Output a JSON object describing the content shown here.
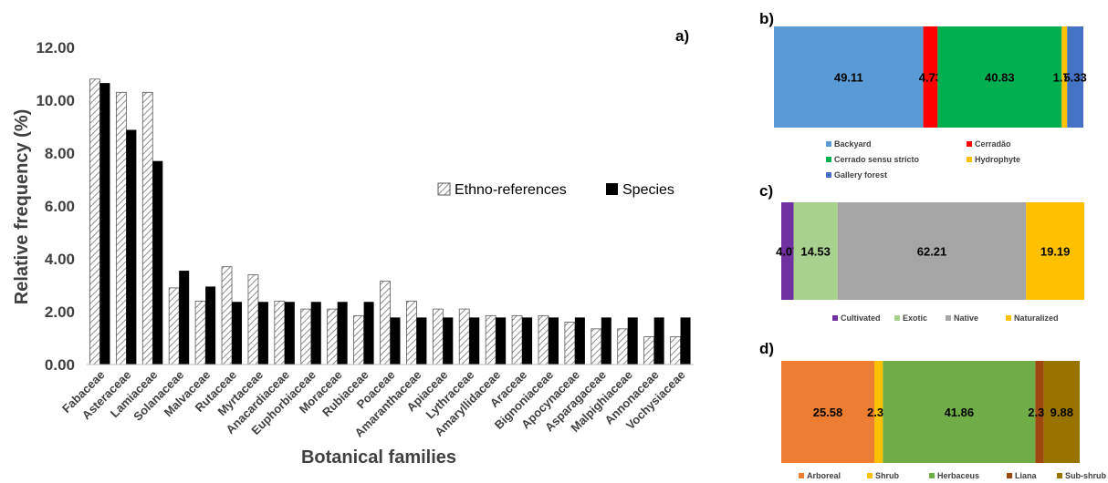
{
  "chart_data": [
    {
      "panel": "a)",
      "type": "bar",
      "ylabel": "Relative frequency (%)",
      "xlabel": "Botanical families",
      "ylim": [
        0,
        12
      ],
      "yticks": [
        "0.00",
        "2.00",
        "4.00",
        "6.00",
        "8.00",
        "10.00",
        "12.00"
      ],
      "grid": false,
      "legend_position": "right",
      "categories": [
        "Fabaceae",
        "Asteraceae",
        "Lamiaceae",
        "Solanaceae",
        "Malvaceae",
        "Rutaceae",
        "Myrtaceae",
        "Anacardiaceae",
        "Euphorbiaceae",
        "Moraceae",
        "Rubiaceae",
        "Poaceae",
        "Amaranthaceae",
        "Apiaceae",
        "Lythraceae",
        "Amaryllidaceae",
        "Araceae",
        "Bignoniaceae",
        "Apocynaceae",
        "Asparagaceae",
        "Malpighiaceae",
        "Annonaceae",
        "Vochysiaceae"
      ],
      "series": [
        {
          "name": "Ethno-references",
          "pattern": "hatched",
          "values": [
            10.8,
            10.3,
            10.3,
            2.9,
            2.4,
            3.7,
            3.4,
            2.4,
            2.1,
            2.1,
            1.85,
            3.15,
            2.4,
            2.1,
            2.1,
            1.85,
            1.85,
            1.85,
            1.6,
            1.35,
            1.35,
            1.05,
            1.05
          ]
        },
        {
          "name": "Species",
          "color": "#000000",
          "values": [
            10.65,
            8.88,
            7.7,
            3.55,
            2.95,
            2.37,
            2.37,
            2.37,
            2.37,
            2.37,
            2.37,
            1.78,
            1.78,
            1.78,
            1.78,
            1.78,
            1.78,
            1.78,
            1.78,
            1.78,
            1.78,
            1.78,
            1.78
          ]
        }
      ]
    },
    {
      "panel": "b)",
      "type": "bar",
      "orientation": "horizontal",
      "stacked": true,
      "legend_position": "bottom",
      "series": [
        {
          "name": "Backyard",
          "value": 49.11,
          "label": "49.11",
          "color": "#5b9bd5"
        },
        {
          "name": "Cerradão",
          "value": 4.73,
          "label": "4.73",
          "color": "#ff0000"
        },
        {
          "name": "Cerrado sensu stricto",
          "value": 40.83,
          "label": "40.83",
          "color": "#00b050"
        },
        {
          "name": "Hydrophyte",
          "value": 1.78,
          "label": "1.78",
          "color": "#ffc000"
        },
        {
          "name": "Gallery forest",
          "value": 5.33,
          "label": "5.33",
          "color": "#4472c4"
        }
      ]
    },
    {
      "panel": "c)",
      "type": "bar",
      "orientation": "horizontal",
      "stacked": true,
      "legend_position": "bottom",
      "series": [
        {
          "name": "Cultivated",
          "value": 4.07,
          "label": "4.07",
          "color": "#7030a0"
        },
        {
          "name": "Exotic",
          "value": 14.53,
          "label": "14.53",
          "color": "#a9d18e"
        },
        {
          "name": "Native",
          "value": 62.21,
          "label": "62.21",
          "color": "#a5a5a5"
        },
        {
          "name": "Naturalized",
          "value": 19.19,
          "label": "19.19",
          "color": "#ffc000"
        }
      ]
    },
    {
      "panel": "d)",
      "type": "bar",
      "orientation": "horizontal",
      "stacked": true,
      "legend_position": "bottom",
      "series": [
        {
          "name": "Arboreal",
          "value": 25.58,
          "label": "25.58",
          "color": "#ed7d31"
        },
        {
          "name": "Shrub",
          "value": 2.35,
          "label": "2.35",
          "color": "#ffc000"
        },
        {
          "name": "Herbaceus",
          "value": 41.86,
          "label": "41.86",
          "color": "#70ad47"
        },
        {
          "name": "Liana",
          "value": 2.33,
          "label": "2.33",
          "color": "#9e480e"
        },
        {
          "name": "Sub-shrub",
          "value": 9.88,
          "label": "9.88",
          "color": "#997300"
        }
      ]
    }
  ]
}
